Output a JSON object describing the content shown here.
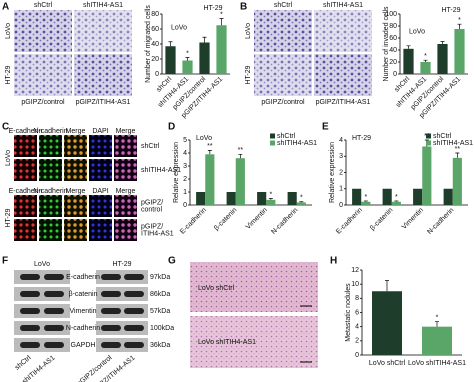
{
  "panel_letters": [
    "A",
    "B",
    "C",
    "D",
    "E",
    "F",
    "G",
    "H"
  ],
  "panel_a": {
    "columns": [
      "shCtrl",
      "shITIH4-AS1"
    ],
    "rows": [
      "LoVo",
      "HT-29"
    ],
    "bottom": [
      "pGIPZ/control",
      "pGIPZ/ITIH4-AS1"
    ]
  },
  "panel_b": {
    "columns": [
      "shCtrl",
      "shITIH4-AS1"
    ],
    "rows": [
      "LoVo",
      "HT-29"
    ],
    "bottom": [
      "pGIPZ/control",
      "pGIPZ/ITIH4-AS1"
    ]
  },
  "panel_c": {
    "columns": [
      "E-cadherin",
      "N-cadherin",
      "Merge",
      "DAPI",
      "Merge"
    ],
    "columns_2": [
      "E-cadherin",
      "N-cadherin",
      "Merge",
      "DAPI",
      "Merge"
    ],
    "rows": [
      "LoVo",
      "HT-29"
    ],
    "conditions": [
      [
        "shCtrl"
      ],
      [
        "shITIH4-AS1"
      ],
      [
        "pGIPZ/",
        "control"
      ],
      [
        "pGIPZ/",
        "ITIH4-AS1"
      ]
    ]
  },
  "panel_f": {
    "groups": [
      "LoVo",
      "HT-29"
    ],
    "proteins": [
      "E-cadherin",
      "β-catenin",
      "Vimentin",
      "N-cadherin",
      "GAPDH"
    ],
    "sizes": [
      "97kDa",
      "86kDa",
      "57kDa",
      "100kDa",
      "36kDa"
    ],
    "lanes": [
      "shCtrl",
      "shITIH4-AS1",
      "pGIPZ/control",
      "pGIPZ/ITIH4-AS1"
    ]
  },
  "panel_g": {
    "labels": [
      "LoVo shCtrl",
      "LoVo shITIH4-AS1"
    ]
  },
  "chart_data": [
    {
      "type": "bar",
      "y_label": "Number of migrated cells",
      "categories": [
        "shCtrl",
        "shITIH4-AS1",
        "pGIPZ/control",
        "pGIPZ/ITIH4-AS1"
      ],
      "values": [
        37,
        18,
        42,
        65
      ],
      "errors": [
        6,
        4,
        7,
        9
      ],
      "colors": [
        "#1e3d2a",
        "#5aa668",
        "#1e3d2a",
        "#5aa668"
      ],
      "significance": [
        null,
        "*",
        null,
        "*"
      ],
      "group_labels": [
        "LoVo",
        "HT-29"
      ],
      "ylim": [
        0,
        80
      ],
      "yticks": [
        0,
        20,
        40,
        60,
        80
      ]
    },
    {
      "type": "bar",
      "y_label": "Number of invaded cells",
      "categories": [
        "shCtrl",
        "shITIH4-AS1",
        "pGIPZ/control",
        "pGIPZ/ITIH4-AS1"
      ],
      "values": [
        42,
        20,
        50,
        75
      ],
      "errors": [
        5,
        3,
        4,
        8
      ],
      "colors": [
        "#1e3d2a",
        "#5aa668",
        "#1e3d2a",
        "#5aa668"
      ],
      "significance": [
        null,
        "*",
        null,
        "*"
      ],
      "group_labels": [
        "LoVo",
        "HT-29"
      ],
      "ylim": [
        0,
        100
      ],
      "yticks": [
        0,
        20,
        40,
        60,
        80,
        100
      ]
    },
    {
      "type": "bar",
      "title": "LoVo",
      "y_label": "Relative expression",
      "categories": [
        "E-cadherin",
        "β-catenin",
        "Vimentin",
        "N-cadherin"
      ],
      "series": [
        {
          "name": "shCtrl",
          "color": "#1e3d2a",
          "values": [
            1,
            1,
            1,
            1
          ]
        },
        {
          "name": "shITIH4-AS1",
          "color": "#5aa668",
          "values": [
            3.9,
            3.6,
            0.4,
            0.2
          ],
          "errors": [
            0.3,
            0.3,
            0.1,
            0.05
          ],
          "significance": [
            "**",
            "**",
            "*",
            "*"
          ]
        }
      ],
      "legend": "top-right",
      "ylim": [
        0,
        5
      ],
      "yticks": [
        0,
        1,
        2,
        3,
        4,
        5
      ]
    },
    {
      "type": "bar",
      "title": "HT-29",
      "y_label": "Relative expression",
      "categories": [
        "E-cadherin",
        "β-catenin",
        "Vimentin",
        "N-cadherin"
      ],
      "series": [
        {
          "name": "shCtrl",
          "color": "#1e3d2a",
          "values": [
            1,
            1,
            1,
            1
          ]
        },
        {
          "name": "shITIH4-AS1",
          "color": "#5aa668",
          "values": [
            0.2,
            0.2,
            3.6,
            2.9
          ],
          "errors": [
            0.05,
            0.05,
            0.4,
            0.3
          ],
          "significance": [
            "*",
            "*",
            "**",
            "**"
          ]
        }
      ],
      "legend": "top-right",
      "ylim": [
        0,
        4
      ],
      "yticks": [
        0,
        1,
        2,
        3,
        4
      ]
    },
    {
      "type": "bar",
      "y_label": "Metastatic nodules",
      "categories": [
        "LoVo shCtrl",
        "LoVo shITIH4-AS1"
      ],
      "values": [
        9,
        4
      ],
      "errors": [
        1.5,
        0.7
      ],
      "colors": [
        "#1e3d2a",
        "#5aa668"
      ],
      "significance": [
        null,
        "*"
      ],
      "ylim": [
        0,
        12
      ],
      "yticks": [
        0,
        2,
        4,
        6,
        8,
        10,
        12
      ]
    }
  ]
}
